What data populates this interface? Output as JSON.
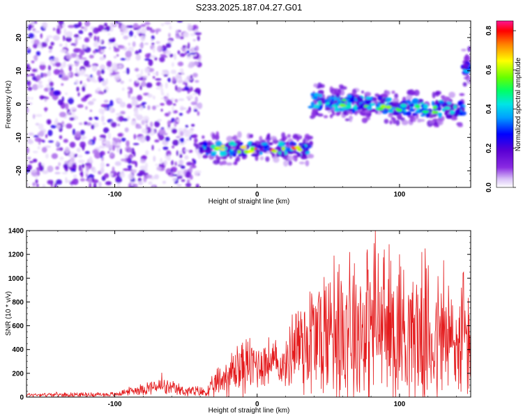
{
  "title": "S233.2025.187.04.27.G01",
  "colors": {
    "snr_line": "#e41a1c",
    "frame": "#000000",
    "colormap": [
      "#ffffff",
      "#d9c2f7",
      "#8a2be2",
      "#5a00d4",
      "#0000ff",
      "#00a0ff",
      "#00e5e5",
      "#00ff66",
      "#66ff00",
      "#ffff00",
      "#ff8000",
      "#ff0000",
      "#ff1493"
    ]
  },
  "chart_data": [
    {
      "type": "heatmap",
      "title": "S233.2025.187.04.27.G01",
      "xlabel": "Height of straight line (km)",
      "ylabel": "Frequency (Hz)",
      "xlim": [
        -162,
        150
      ],
      "ylim": [
        -25,
        25
      ],
      "xticks": [
        -100,
        0,
        100
      ],
      "yticks": [
        -20,
        -10,
        0,
        10,
        20
      ],
      "colorbar": {
        "label": "Normalized spectral amplitude",
        "range": [
          0.0,
          0.85
        ],
        "ticks": [
          "0.0",
          "0.2",
          "0.4",
          "0.6",
          "0.8"
        ]
      },
      "segments": [
        {
          "x_start": -162,
          "x_end": -40,
          "freq_hz": 0,
          "description_type": "noise",
          "amplitude": 0.1
        },
        {
          "x_start": -40,
          "x_end": 38,
          "freq_hz": -13.5,
          "amplitude_peak": 0.8
        },
        {
          "x_start": 38,
          "x_end": 145,
          "freq_hz_start": 1,
          "freq_hz_end": -2,
          "amplitude_peak": 0.6
        },
        {
          "x_start": 145,
          "x_end": 150,
          "freq_hz": 11,
          "amplitude_peak": 0.3
        }
      ]
    },
    {
      "type": "line",
      "xlabel": "Height of straight line (km)",
      "ylabel": "SNR (10 * v/v)",
      "xlim": [
        -162,
        150
      ],
      "ylim": [
        0,
        1400
      ],
      "xticks": [
        -100,
        0,
        100
      ],
      "yticks": [
        0,
        200,
        400,
        600,
        800,
        1000,
        1200,
        1400
      ],
      "envelope": [
        {
          "x": -162,
          "mean": 20,
          "amp": 20
        },
        {
          "x": -100,
          "mean": 22,
          "amp": 25
        },
        {
          "x": -90,
          "mean": 50,
          "amp": 40
        },
        {
          "x": -70,
          "mean": 90,
          "amp": 90
        },
        {
          "x": -50,
          "mean": 50,
          "amp": 60
        },
        {
          "x": -35,
          "mean": 40,
          "amp": 60
        },
        {
          "x": -25,
          "mean": 150,
          "amp": 200
        },
        {
          "x": -10,
          "mean": 260,
          "amp": 300
        },
        {
          "x": 10,
          "mean": 300,
          "amp": 250
        },
        {
          "x": 20,
          "mean": 250,
          "amp": 200
        },
        {
          "x": 25,
          "mean": 450,
          "amp": 500
        },
        {
          "x": 40,
          "mean": 500,
          "amp": 700
        },
        {
          "x": 60,
          "mean": 600,
          "amp": 800
        },
        {
          "x": 85,
          "mean": 600,
          "amp": 850
        },
        {
          "x": 110,
          "mean": 550,
          "amp": 750
        },
        {
          "x": 130,
          "mean": 450,
          "amp": 750
        },
        {
          "x": 150,
          "mean": 450,
          "amp": 700
        }
      ],
      "peaks": [
        {
          "x": -67,
          "y": 205
        },
        {
          "x": -14,
          "y": 430
        },
        {
          "x": 54,
          "y": 1190
        },
        {
          "x": 65,
          "y": 1220
        },
        {
          "x": 83,
          "y": 1400
        },
        {
          "x": 100,
          "y": 1200
        },
        {
          "x": 118,
          "y": 1250
        },
        {
          "x": 131,
          "y": 1150
        },
        {
          "x": 145,
          "y": 1050
        }
      ]
    }
  ]
}
